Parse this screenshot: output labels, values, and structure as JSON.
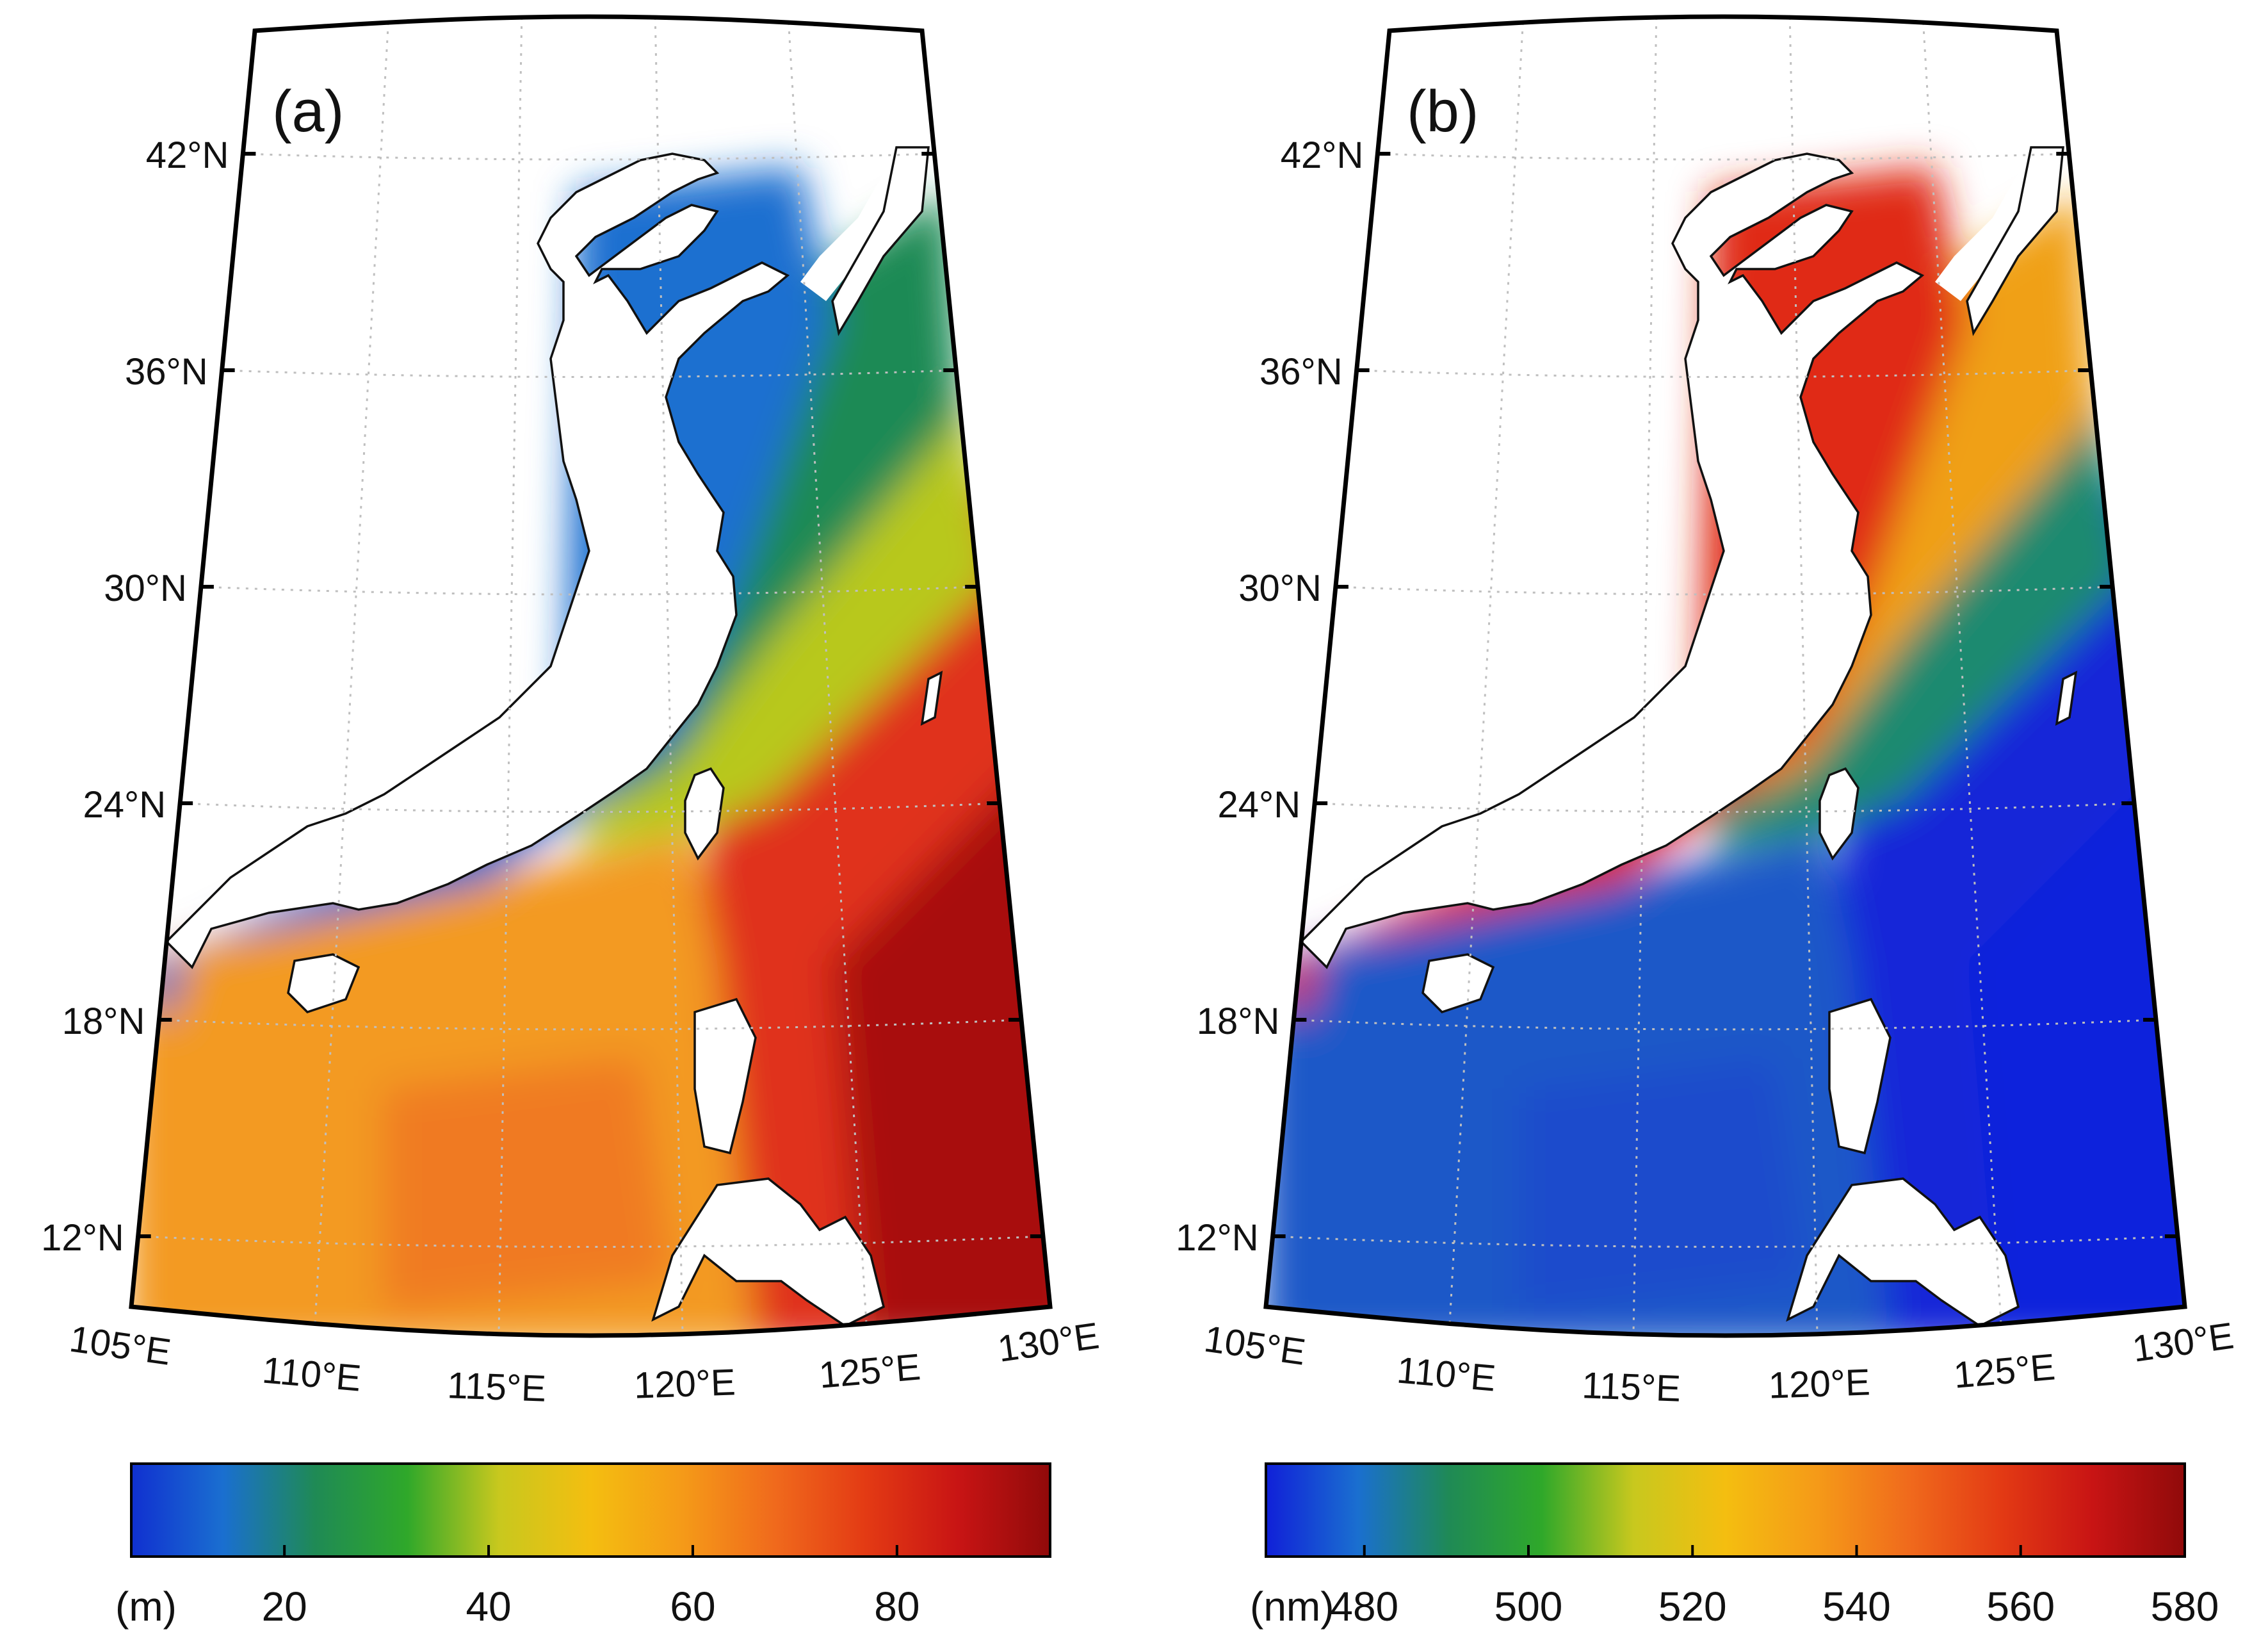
{
  "panels": [
    {
      "id": "a",
      "label": "(a)",
      "lat_labels": [
        "42°N",
        "36°N",
        "30°N",
        "24°N",
        "18°N",
        "12°N"
      ],
      "lon_labels": [
        "105°E",
        "110°E",
        "115°E",
        "120°E",
        "125°E",
        "130°E"
      ],
      "colorbar": {
        "unit": "(m)",
        "ticks": [
          "20",
          "40",
          "60",
          "80"
        ],
        "range": [
          5,
          95
        ],
        "colors": [
          "#1030d0",
          "#1a6fd0",
          "#1f8a55",
          "#2fa82a",
          "#c8c81e",
          "#f4be10",
          "#f59a18",
          "#f06a1c",
          "#e33a14",
          "#c81414",
          "#900a0a"
        ]
      },
      "map_colors": {
        "nearshore": "#1a6fd0",
        "shelf": "#1f8a55",
        "mid_shelf": "#b8c81e",
        "scs_basin": "#f39a20",
        "scs_center": "#f07a22",
        "open_ocean": "#e0301a",
        "deep_ocean": "#a80c0c"
      }
    },
    {
      "id": "b",
      "label": "(b)",
      "lat_labels": [
        "42°N",
        "36°N",
        "30°N",
        "24°N",
        "18°N",
        "12°N"
      ],
      "lon_labels": [
        "105°E",
        "110°E",
        "115°E",
        "120°E",
        "125°E",
        "130°E"
      ],
      "colorbar": {
        "unit": "(nm)",
        "ticks": [
          "480",
          "500",
          "520",
          "540",
          "560",
          "580"
        ],
        "range": [
          468,
          580
        ],
        "colors": [
          "#1020d8",
          "#1a6fd0",
          "#1f8a55",
          "#2fa82a",
          "#c8c81e",
          "#f4be10",
          "#f59a18",
          "#f06a1c",
          "#e33a14",
          "#c81414",
          "#900a0a"
        ]
      },
      "map_colors": {
        "nearshore": "#e02a18",
        "shelf": "#f0a018",
        "mid_shelf": "#1f8a70",
        "scs_basin": "#1a58c8",
        "scs_center": "#1a4ccc",
        "open_ocean": "#1228d8",
        "deep_ocean": "#1022dc"
      }
    }
  ]
}
